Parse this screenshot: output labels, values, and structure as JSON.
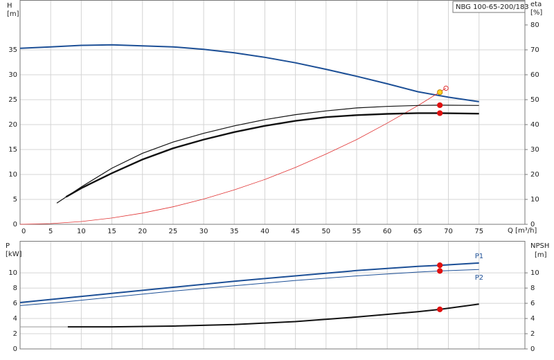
{
  "chart_data": [
    {
      "type": "line",
      "title": "NBG 100-65-200/183",
      "y_label": "H",
      "y_unit": "[m]",
      "y2_label": "eta",
      "y2_unit": "[%]",
      "x_label": "Q [m³/h]",
      "xlim": [
        0,
        82.5
      ],
      "xticks": [
        0,
        5,
        10,
        15,
        20,
        25,
        30,
        35,
        40,
        45,
        50,
        55,
        60,
        65,
        70,
        75
      ],
      "ylim": [
        0,
        45
      ],
      "yticks": [
        0,
        5,
        10,
        15,
        20,
        25,
        30,
        35
      ],
      "y2lim": [
        0,
        90
      ],
      "y2ticks": [
        0,
        10,
        20,
        30,
        40,
        50,
        60,
        70,
        80
      ],
      "grid": true,
      "series": [
        {
          "color": "#1c4f96",
          "width": 2,
          "x": [
            0,
            5,
            10,
            15,
            20,
            25,
            30,
            35,
            40,
            45,
            50,
            55,
            60,
            65,
            70,
            75
          ],
          "values": [
            35.3,
            35.6,
            35.9,
            36.0,
            35.8,
            35.6,
            35.1,
            34.4,
            33.5,
            32.4,
            31.1,
            29.7,
            28.2,
            26.6,
            25.5,
            24.6
          ]
        },
        {
          "color": "#e03030",
          "width": 0.8,
          "x": [
            0,
            5,
            10,
            15,
            20,
            25,
            30,
            35,
            40,
            45,
            50,
            55,
            60,
            65,
            69.6
          ],
          "values": [
            0,
            0.14,
            0.56,
            1.27,
            2.25,
            3.52,
            5.07,
            6.9,
            9.0,
            11.4,
            14.1,
            17.0,
            20.3,
            23.8,
            27.3
          ]
        },
        {
          "color": "#111111",
          "width": 1.2,
          "axis": "y2",
          "x": [
            6,
            10,
            15,
            20,
            25,
            30,
            35,
            40,
            45,
            50,
            55,
            60,
            65,
            68.6,
            75
          ],
          "values": [
            8.5,
            15,
            22.5,
            28.5,
            33,
            36.5,
            39.5,
            42,
            44,
            45.5,
            46.7,
            47.3,
            47.7,
            47.8,
            47.7
          ]
        },
        {
          "color": "#111111",
          "width": 2.4,
          "axis": "y2",
          "x": [
            7.5,
            10,
            15,
            20,
            25,
            30,
            35,
            40,
            45,
            50,
            55,
            60,
            65,
            68.6,
            75
          ],
          "values": [
            11,
            14.5,
            20.5,
            26,
            30.5,
            34,
            37,
            39.5,
            41.5,
            43,
            43.8,
            44.3,
            44.6,
            44.6,
            44.4
          ]
        },
        {
          "type": "dots",
          "color": "#ffd21f",
          "x": [
            68.6
          ],
          "values": [
            26.5
          ]
        },
        {
          "type": "open-dots",
          "color": "#e03030",
          "x": [
            69.6
          ],
          "values": [
            27.3
          ]
        },
        {
          "type": "dots",
          "color": "#e01010",
          "axis": "y2",
          "x": [
            68.6,
            68.6
          ],
          "values": [
            47.8,
            44.6
          ]
        }
      ]
    },
    {
      "type": "line",
      "y_label": "P",
      "y_unit": "[kW]",
      "y2_label": "NPSH",
      "y2_unit": "[m]",
      "xlim": [
        0,
        82.5
      ],
      "xticks": [
        0,
        5,
        10,
        15,
        20,
        25,
        30,
        35,
        40,
        45,
        50,
        55,
        60,
        65,
        70,
        75
      ],
      "ylim": [
        0,
        14.2
      ],
      "yticks": [
        0,
        2,
        4,
        6,
        8,
        10
      ],
      "y2lim": [
        0,
        14.2
      ],
      "y2ticks": [
        0,
        2,
        4,
        6,
        8,
        10
      ],
      "grid": true,
      "series": [
        {
          "name": "P1",
          "color": "#1c4f96",
          "width": 2,
          "x": [
            0,
            7.5,
            15,
            25,
            35,
            45,
            55,
            65,
            68.6,
            75
          ],
          "values": [
            6.1,
            6.7,
            7.3,
            8.1,
            8.9,
            9.6,
            10.3,
            10.85,
            11.0,
            11.3
          ]
        },
        {
          "name": "P2",
          "color": "#1c4f96",
          "width": 1,
          "x": [
            0,
            7.5,
            15,
            25,
            35,
            45,
            55,
            65,
            68.6,
            75
          ],
          "values": [
            5.7,
            6.2,
            6.8,
            7.6,
            8.3,
            9.0,
            9.6,
            10.1,
            10.25,
            10.45
          ]
        },
        {
          "color": "#999999",
          "width": 1,
          "axis": "y2",
          "x": [
            0,
            7.8
          ],
          "values": [
            2.9,
            2.9
          ]
        },
        {
          "color": "#111111",
          "width": 2,
          "axis": "y2",
          "x": [
            7.8,
            15,
            25,
            35,
            45,
            55,
            65,
            68.6,
            75
          ],
          "values": [
            2.9,
            2.9,
            3.0,
            3.2,
            3.6,
            4.2,
            4.9,
            5.2,
            5.9
          ]
        },
        {
          "type": "dots",
          "color": "#e01010",
          "x": [
            68.6,
            68.6
          ],
          "values": [
            11.0,
            10.25
          ]
        },
        {
          "type": "dots",
          "color": "#e01010",
          "axis": "y2",
          "x": [
            68.6
          ],
          "values": [
            5.2
          ]
        }
      ]
    }
  ]
}
